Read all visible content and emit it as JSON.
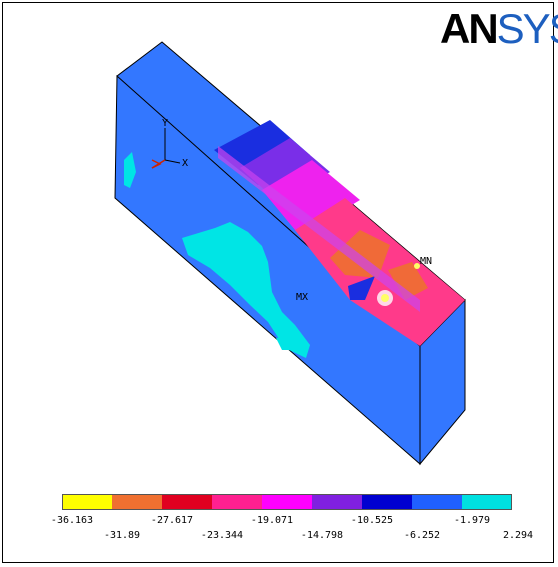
{
  "logo": {
    "part1": "AN",
    "part2": "SYS"
  },
  "markers": {
    "mx": "MX",
    "mn": "MN"
  },
  "triad": {
    "y_label": "Y",
    "x_label": "X"
  },
  "legend": {
    "colors": [
      "#ffff00",
      "#f07030",
      "#e00020",
      "#ff2090",
      "#ff00ff",
      "#8020e0",
      "#0000d0",
      "#2060ff",
      "#00e0e0"
    ],
    "upper_ticks": [
      "-36.163",
      "-27.617",
      "-19.071",
      "-10.525",
      "-1.979"
    ],
    "lower_ticks": [
      "-31.89",
      "-23.344",
      "-14.798",
      "-6.252",
      "2.294"
    ]
  },
  "colors": {
    "model_blue": "#3377ff",
    "cyan": "#00e5e5",
    "edge": "#000000"
  }
}
